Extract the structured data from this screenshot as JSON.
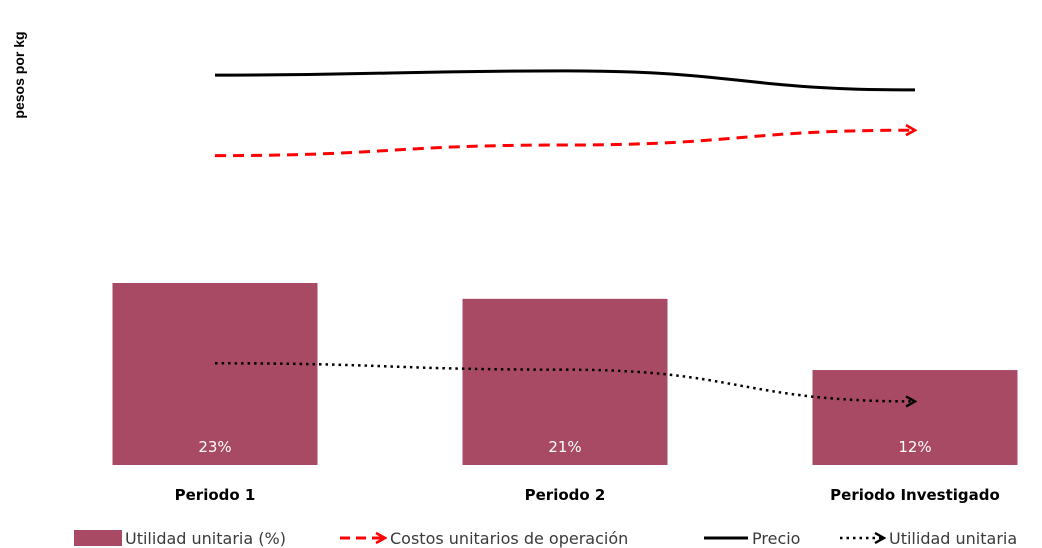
{
  "chart_data": {
    "type": "bar",
    "ylabel": "pesos por kg",
    "categories": [
      "Periodo 1",
      "Periodo 2",
      "Periodo Investigado"
    ],
    "bars": {
      "name": "Utilidad unitaria (%)",
      "values": [
        23,
        21,
        12
      ],
      "labels": [
        "23%",
        "21%",
        "12%"
      ],
      "color": "#a84a64"
    },
    "lines": [
      {
        "name": "Costos unitarios de operación",
        "style": "dashed-arrow",
        "color": "#ff0000",
        "values": [
          6.8,
          7.05,
          7.4
        ]
      },
      {
        "name": "Precio",
        "style": "solid",
        "color": "#000000",
        "values": [
          8.7,
          8.8,
          8.35
        ]
      },
      {
        "name": "Utilidad unitaria",
        "style": "dotted-arrow",
        "color": "#000000",
        "values": [
          1.9,
          1.75,
          1.0
        ]
      }
    ],
    "legend_position": "bottom",
    "bar_axis_max": 23,
    "line_axis_range": [
      -0.5,
      10
    ]
  }
}
